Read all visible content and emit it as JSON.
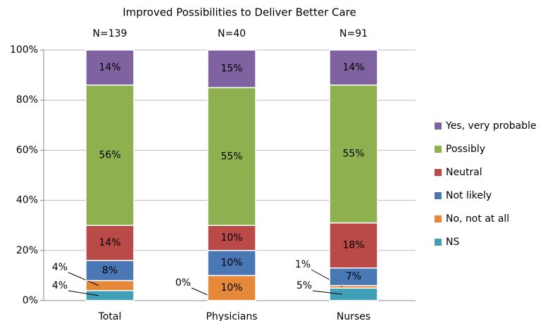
{
  "chart_data": {
    "type": "stacked_bar",
    "title": "Improved Possibilities to Deliver Better Care",
    "categories": [
      "Total",
      "Physicians",
      "Nurses"
    ],
    "annotations": [
      "N=139",
      "N=40",
      "N=91"
    ],
    "series": [
      {
        "name": "NS",
        "color": "#41a0b8",
        "values": [
          4,
          0,
          5
        ],
        "value_labels": [
          "4%",
          "0%",
          "5%"
        ]
      },
      {
        "name": "No, not at all",
        "color": "#e6883a",
        "values": [
          4,
          10,
          1
        ],
        "value_labels": [
          "4%",
          "10%",
          "1%"
        ]
      },
      {
        "name": "Not likely",
        "color": "#4a78b5",
        "values": [
          8,
          10,
          7
        ],
        "value_labels": [
          "8%",
          "10%",
          "7%"
        ]
      },
      {
        "name": "Neutral",
        "color": "#b94a48",
        "values": [
          14,
          10,
          18
        ],
        "value_labels": [
          "14%",
          "10%",
          "18%"
        ]
      },
      {
        "name": "Possibly",
        "color": "#8fb04f",
        "values": [
          56,
          55,
          55
        ],
        "value_labels": [
          "56%",
          "55%",
          "55%"
        ]
      },
      {
        "name": "Yes, very probable",
        "color": "#7f63a1",
        "values": [
          14,
          15,
          14
        ],
        "value_labels": [
          "14%",
          "15%",
          "14%"
        ]
      }
    ],
    "ylim": [
      0,
      100
    ],
    "yticks": [
      {
        "value": 0,
        "label": "0%"
      },
      {
        "value": 20,
        "label": "20%"
      },
      {
        "value": 40,
        "label": "40%"
      },
      {
        "value": 60,
        "label": "60%"
      },
      {
        "value": 80,
        "label": "80%"
      },
      {
        "value": 100,
        "label": "100%"
      }
    ],
    "grid": true,
    "legend": "right"
  }
}
